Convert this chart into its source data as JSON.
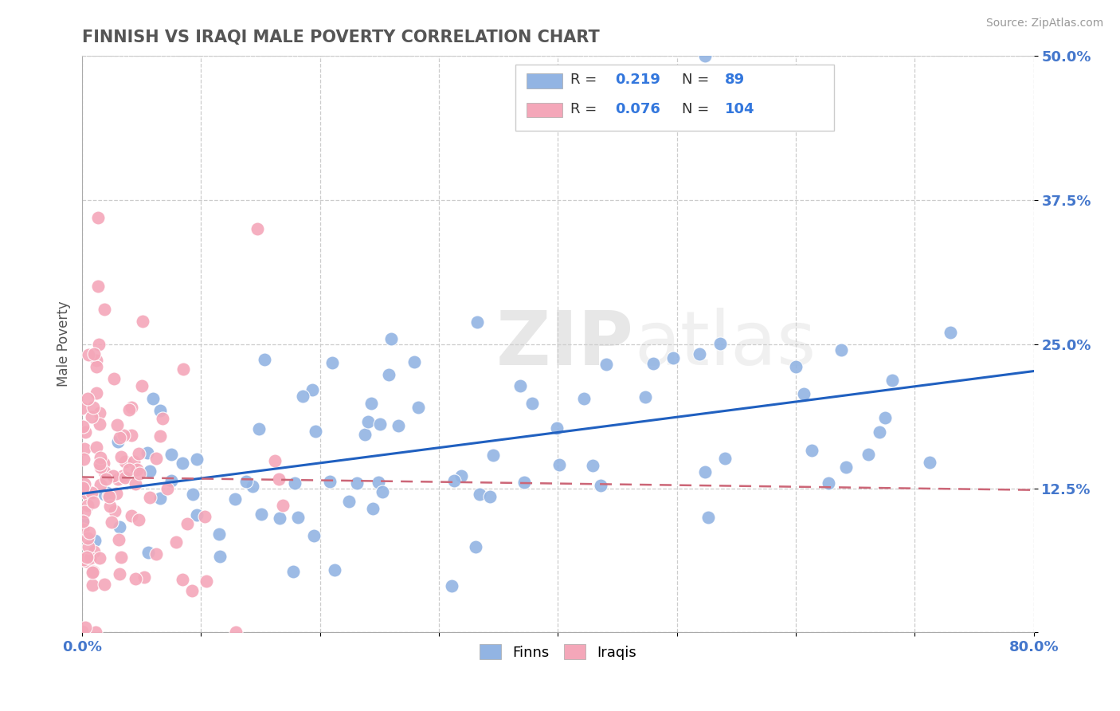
{
  "title": "FINNISH VS IRAQI MALE POVERTY CORRELATION CHART",
  "source": "Source: ZipAtlas.com",
  "ylabel": "Male Poverty",
  "y_ticks": [
    0.0,
    0.125,
    0.25,
    0.375,
    0.5
  ],
  "y_tick_labels": [
    "",
    "12.5%",
    "25.0%",
    "37.5%",
    "50.0%"
  ],
  "x_ticks": [
    0.0,
    0.1,
    0.2,
    0.3,
    0.4,
    0.5,
    0.6,
    0.7,
    0.8
  ],
  "finn_color": "#92b4e3",
  "iraqi_color": "#f4a7b9",
  "finn_line_color": "#2060c0",
  "iraqi_line_color": "#cc6677",
  "background_color": "#ffffff",
  "finn_R": 0.219,
  "iraqi_R": 0.076,
  "finn_N": 89,
  "iraqi_N": 104,
  "title_color": "#555555",
  "source_color": "#999999",
  "tick_label_color": "#4477cc",
  "watermark_color": "#d0d0d0",
  "watermark_alpha": 0.5
}
